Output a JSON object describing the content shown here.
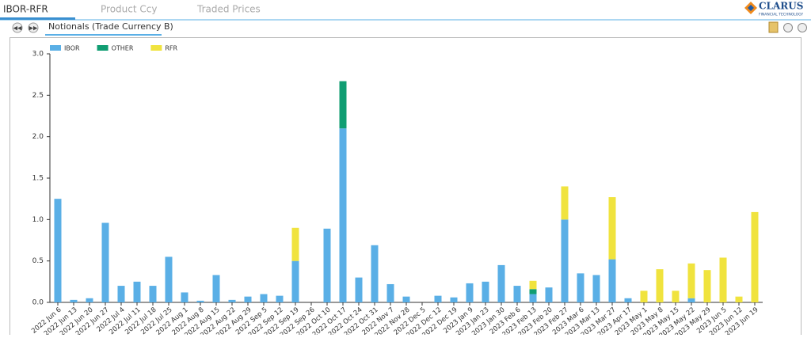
{
  "tabs": [
    "IBOR-RFR",
    "Product Ccy",
    "Traded Prices"
  ],
  "logo": {
    "name": "CLARUS",
    "tagline": "FINANCIAL TECHNOLOGY"
  },
  "subtab": "Notionals (Trade Currency B)",
  "chart_data": {
    "type": "stacked_bar",
    "categories": [
      "2022 Jun 6",
      "2022 Jun 13",
      "2022 Jun 20",
      "2022 Jun 27",
      "2022 Jul 4",
      "2022 Jul 11",
      "2022 Jul 18",
      "2022 Jul 25",
      "2022 Aug 1",
      "2022 Aug 8",
      "2022 Aug 15",
      "2022 Aug 22",
      "2022 Aug 29",
      "2022 Sep 5",
      "2022 Sep 12",
      "2022 Sep 19",
      "2022 Sep 26",
      "2022 Oct 10",
      "2022 Oct 17",
      "2022 Oct 24",
      "2022 Oct 31",
      "2022 Nov 7",
      "2022 Nov 28",
      "2022 Dec 5",
      "2022 Dec 12",
      "2022 Dec 19",
      "2023 Jan 9",
      "2023 Jan 23",
      "2023 Jan 30",
      "2023 Feb 6",
      "2023 Feb 13",
      "2023 Feb 20",
      "2023 Feb 27",
      "2023 Mar 6",
      "2023 Mar 13",
      "2023 Mar 27",
      "2023 Apr 17",
      "2023 May 1",
      "2023 May 8",
      "2023 May 15",
      "2023 May 22",
      "2023 May 29",
      "2023 Jun 5",
      "2023 Jun 12",
      "2023 Jun 19"
    ],
    "series": [
      {
        "name": "IBOR",
        "color": "#5aafe6",
        "values": [
          1.25,
          0.03,
          0.05,
          0.96,
          0.2,
          0.25,
          0.2,
          0.55,
          0.12,
          0.02,
          0.33,
          0.03,
          0.07,
          0.1,
          0.08,
          0.5,
          0,
          0.89,
          2.1,
          0.3,
          0.69,
          0.22,
          0.07,
          0,
          0.08,
          0.06,
          0.23,
          0.25,
          0.45,
          0.2,
          0.1,
          0.18,
          1.0,
          0.35,
          0.33,
          0.52,
          0.05,
          0,
          0,
          0,
          0.05,
          0,
          0,
          0,
          0
        ]
      },
      {
        "name": "OTHER",
        "color": "#109d72",
        "values": [
          0,
          0,
          0,
          0,
          0,
          0,
          0,
          0,
          0,
          0,
          0,
          0,
          0,
          0,
          0,
          0,
          0,
          0,
          0.57,
          0,
          0,
          0,
          0,
          0,
          0,
          0,
          0,
          0,
          0,
          0,
          0.06,
          0,
          0,
          0,
          0,
          0,
          0,
          0,
          0,
          0,
          0,
          0,
          0,
          0,
          0
        ]
      },
      {
        "name": "RFR",
        "color": "#f0e33e",
        "values": [
          0,
          0,
          0,
          0,
          0,
          0,
          0,
          0,
          0,
          0,
          0,
          0,
          0,
          0,
          0,
          0.4,
          0,
          0,
          0,
          0,
          0,
          0,
          0,
          0,
          0,
          0,
          0,
          0,
          0,
          0,
          0.1,
          0,
          0.4,
          0,
          0,
          0.75,
          0,
          0.14,
          0.4,
          0.14,
          0.42,
          0.39,
          0.54,
          0.07,
          1.09
        ]
      }
    ],
    "ylim": [
      0,
      3
    ],
    "yticks": [
      {
        "value": 0,
        "label": "0.0"
      },
      0.5,
      {
        "value": 1,
        "label": "1.0"
      },
      1.5,
      {
        "value": 2,
        "label": "2.0"
      },
      2.5,
      {
        "value": 3,
        "label": "3.0"
      }
    ],
    "legend": "top-left"
  }
}
